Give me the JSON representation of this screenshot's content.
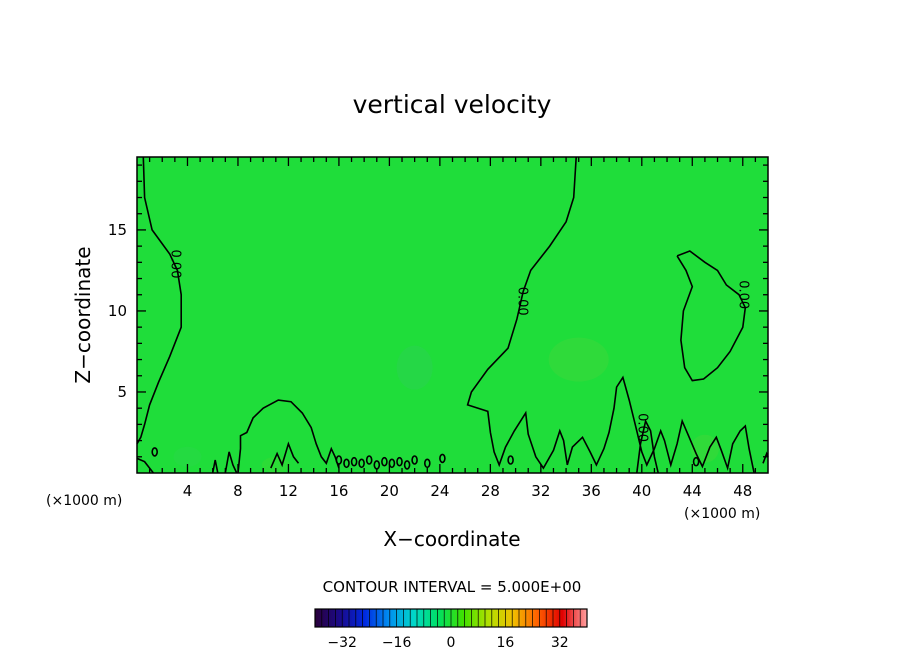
{
  "chart_data": {
    "type": "heatmap",
    "title": "vertical velocity",
    "xlabel": "X−coordinate",
    "ylabel": "Z−coordinate",
    "x_unit": "(×1000 m)",
    "z_unit": "(×1000 m)",
    "xlim": [
      0,
      50
    ],
    "ylim": [
      0,
      19.5
    ],
    "x_ticks": [
      4,
      8,
      12,
      16,
      20,
      24,
      28,
      32,
      36,
      40,
      44,
      48
    ],
    "x_tick_labels": [
      "4",
      "8",
      "12",
      "16",
      "20",
      "24",
      "28",
      "32",
      "36",
      "40",
      "44",
      "48"
    ],
    "y_ticks": [
      5,
      10,
      15
    ],
    "y_tick_labels": [
      "5",
      "10",
      "15"
    ],
    "contour_interval_text": "CONTOUR INTERVAL = 5.000E+00",
    "contour_labels": [
      {
        "text": "0.00",
        "x": 3.0,
        "z": 12.9
      },
      {
        "text": "0.00",
        "x": 30.5,
        "z": 10.6
      },
      {
        "text": "0.00",
        "x": 48.0,
        "z": 11.0
      },
      {
        "text": "0.00",
        "x": 40.0,
        "z": 2.8
      }
    ],
    "background_value": 0,
    "colorbar": {
      "min": -40,
      "max": 40,
      "ticks": [
        -32,
        -16,
        0,
        16,
        32
      ],
      "tick_labels": [
        "−32",
        "−16",
        "0",
        "16",
        "32"
      ],
      "stops": [
        "#2a003a",
        "#1a0a8a",
        "#0028e0",
        "#0090f0",
        "#00d8c8",
        "#00e060",
        "#40e000",
        "#b0e000",
        "#f0c000",
        "#ff6000",
        "#e00000",
        "#ffa0a0"
      ]
    }
  }
}
